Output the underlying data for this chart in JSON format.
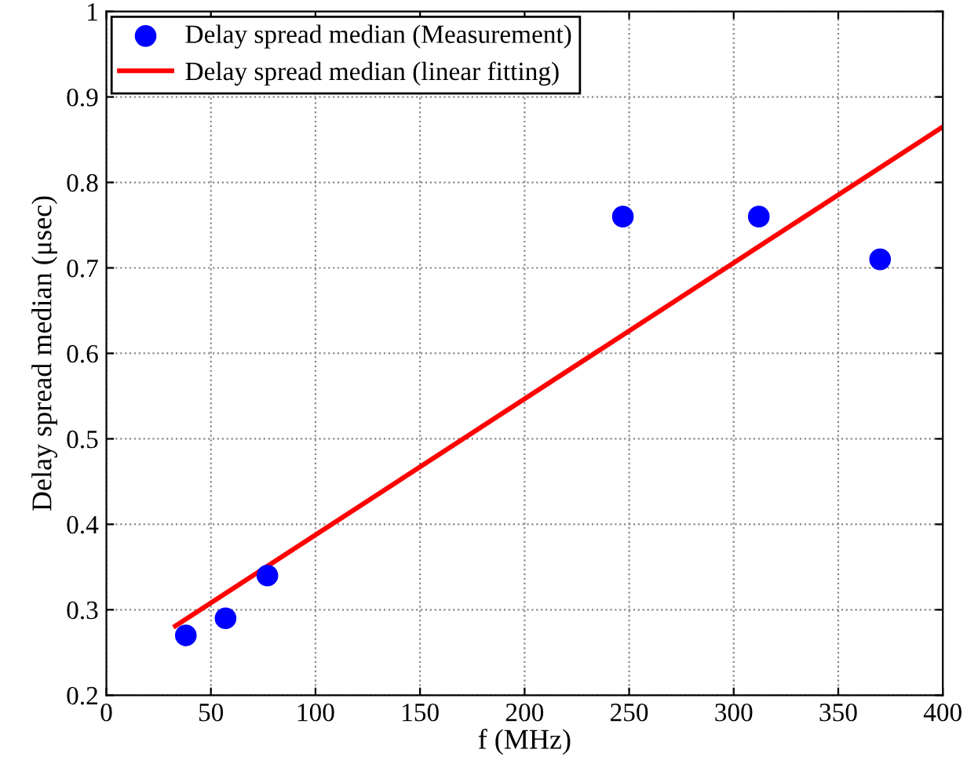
{
  "chart_data": {
    "type": "scatter",
    "xlabel": "f (MHz)",
    "ylabel": "Delay spread median (μsec)",
    "xlim": [
      0,
      400
    ],
    "ylim": [
      0.2,
      1
    ],
    "xticks": [
      0,
      50,
      100,
      150,
      200,
      250,
      300,
      350,
      400
    ],
    "yticks": [
      0.2,
      0.3,
      0.4,
      0.5,
      0.6,
      0.7,
      0.8,
      0.9,
      1
    ],
    "grid": true,
    "legend": "top left",
    "series": [
      {
        "name": "Delay spread median (Measurement)",
        "color": "#0000ff",
        "marker": "circle",
        "x": [
          38,
          57,
          77,
          247,
          312,
          370
        ],
        "values": [
          0.27,
          0.29,
          0.34,
          0.76,
          0.76,
          0.71
        ]
      },
      {
        "name": "Delay spread median (linear fitting)",
        "type": "line",
        "color": "#ff0000",
        "marker": "none",
        "line_style": "solid",
        "x": [
          33,
          400
        ],
        "values": [
          0.281,
          0.865
        ]
      }
    ]
  }
}
